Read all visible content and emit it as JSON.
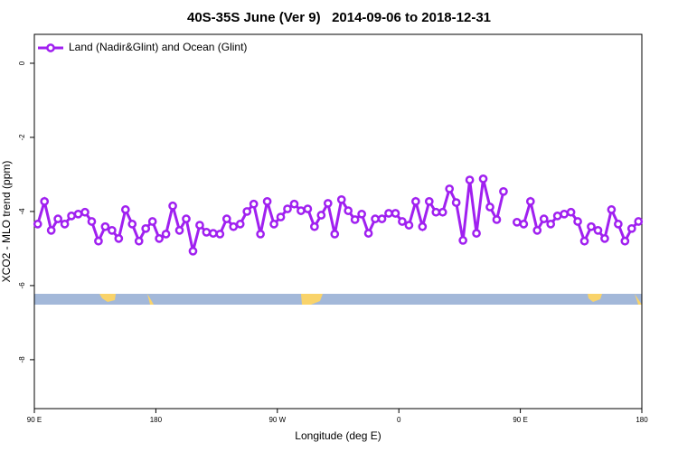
{
  "chart_data": {
    "type": "line",
    "title": "40S-35S June (Ver 9)   2014-09-06 to 2018-12-31",
    "x_label": "Longitude (deg E)",
    "y_label": "XCO2 - MLO trend (ppm)",
    "x": [
      92.5,
      97.5,
      102.5,
      107.5,
      112.5,
      117.5,
      122.5,
      127.5,
      132.5,
      137.5,
      142.5,
      147.5,
      152.5,
      157.5,
      162.5,
      167.5,
      172.5,
      177.5,
      182.5,
      187.5,
      192.5,
      197.5,
      202.5,
      207.5,
      212.5,
      217.5,
      222.5,
      227.5,
      232.5,
      237.5,
      242.5,
      247.5,
      252.5,
      257.5,
      262.5,
      267.5,
      272.5,
      277.5,
      282.5,
      287.5,
      292.5,
      297.5,
      302.5,
      307.5,
      312.5,
      317.5,
      322.5,
      327.5,
      332.5,
      337.5,
      342.5,
      347.5,
      352.5,
      357.5,
      362.5,
      367.5,
      372.5,
      377.5,
      382.5,
      387.5,
      392.5,
      397.5,
      402.5,
      407.5,
      412.5,
      417.5,
      422.5,
      427.5,
      432.5,
      437.5,
      442.5,
      447.5,
      452.5,
      457.5,
      462.5,
      467.5,
      472.5,
      477.5,
      482.5,
      487.5,
      492.5,
      497.5,
      502.5,
      507.5,
      512.5,
      517.5,
      522.5,
      527.5,
      532.5,
      537.5
    ],
    "series": [
      {
        "name": "Land (Nadir&Glint) and Ocean (Glint)",
        "color": "#a020f0",
        "values": [
          -4.34,
          -3.73,
          -4.51,
          -4.2,
          -4.34,
          -4.12,
          -4.07,
          -4.02,
          -4.27,
          -4.8,
          -4.41,
          -4.51,
          -4.73,
          -3.95,
          -4.34,
          -4.8,
          -4.46,
          -4.27,
          -4.73,
          -4.61,
          -3.85,
          -4.51,
          -4.2,
          -5.07,
          -4.37,
          -4.56,
          -4.59,
          -4.61,
          -4.2,
          -4.41,
          -4.34,
          -4.0,
          -3.8,
          -4.61,
          -3.73,
          -4.34,
          -4.15,
          -3.93,
          -3.8,
          -3.98,
          -3.93,
          -4.41,
          -4.1,
          -3.78,
          -4.61,
          -3.68,
          -3.98,
          -4.22,
          -4.07,
          -4.59,
          -4.2,
          -4.2,
          -4.05,
          -4.05,
          -4.27,
          -4.37,
          -3.73,
          -4.41,
          -3.73,
          -4.02,
          -4.02,
          -3.39,
          -3.76,
          -4.78,
          -3.15,
          -4.59,
          -3.12,
          -3.88,
          -4.22,
          -3.46,
          null,
          -4.29,
          -4.34,
          -3.73,
          -4.51,
          -4.2,
          -4.34,
          -4.12,
          -4.07,
          -4.02,
          -4.27,
          -4.8,
          -4.41,
          -4.51,
          -4.73,
          -3.95,
          -4.34,
          -4.8,
          -4.46,
          -4.27
        ]
      }
    ],
    "xlim": [
      90,
      540
    ],
    "xticks": [
      {
        "value": 90,
        "label": "90 E"
      },
      180,
      {
        "value": 270,
        "label": "90 W"
      },
      {
        "value": 360,
        "label": "0"
      },
      {
        "value": 450,
        "label": "90 E"
      },
      {
        "value": 540,
        "label": "180"
      }
    ],
    "ylim": [
      -9.32,
      0.78
    ],
    "yticks": [
      0,
      -2,
      -4,
      -6,
      -8
    ],
    "legend": "top-left"
  }
}
